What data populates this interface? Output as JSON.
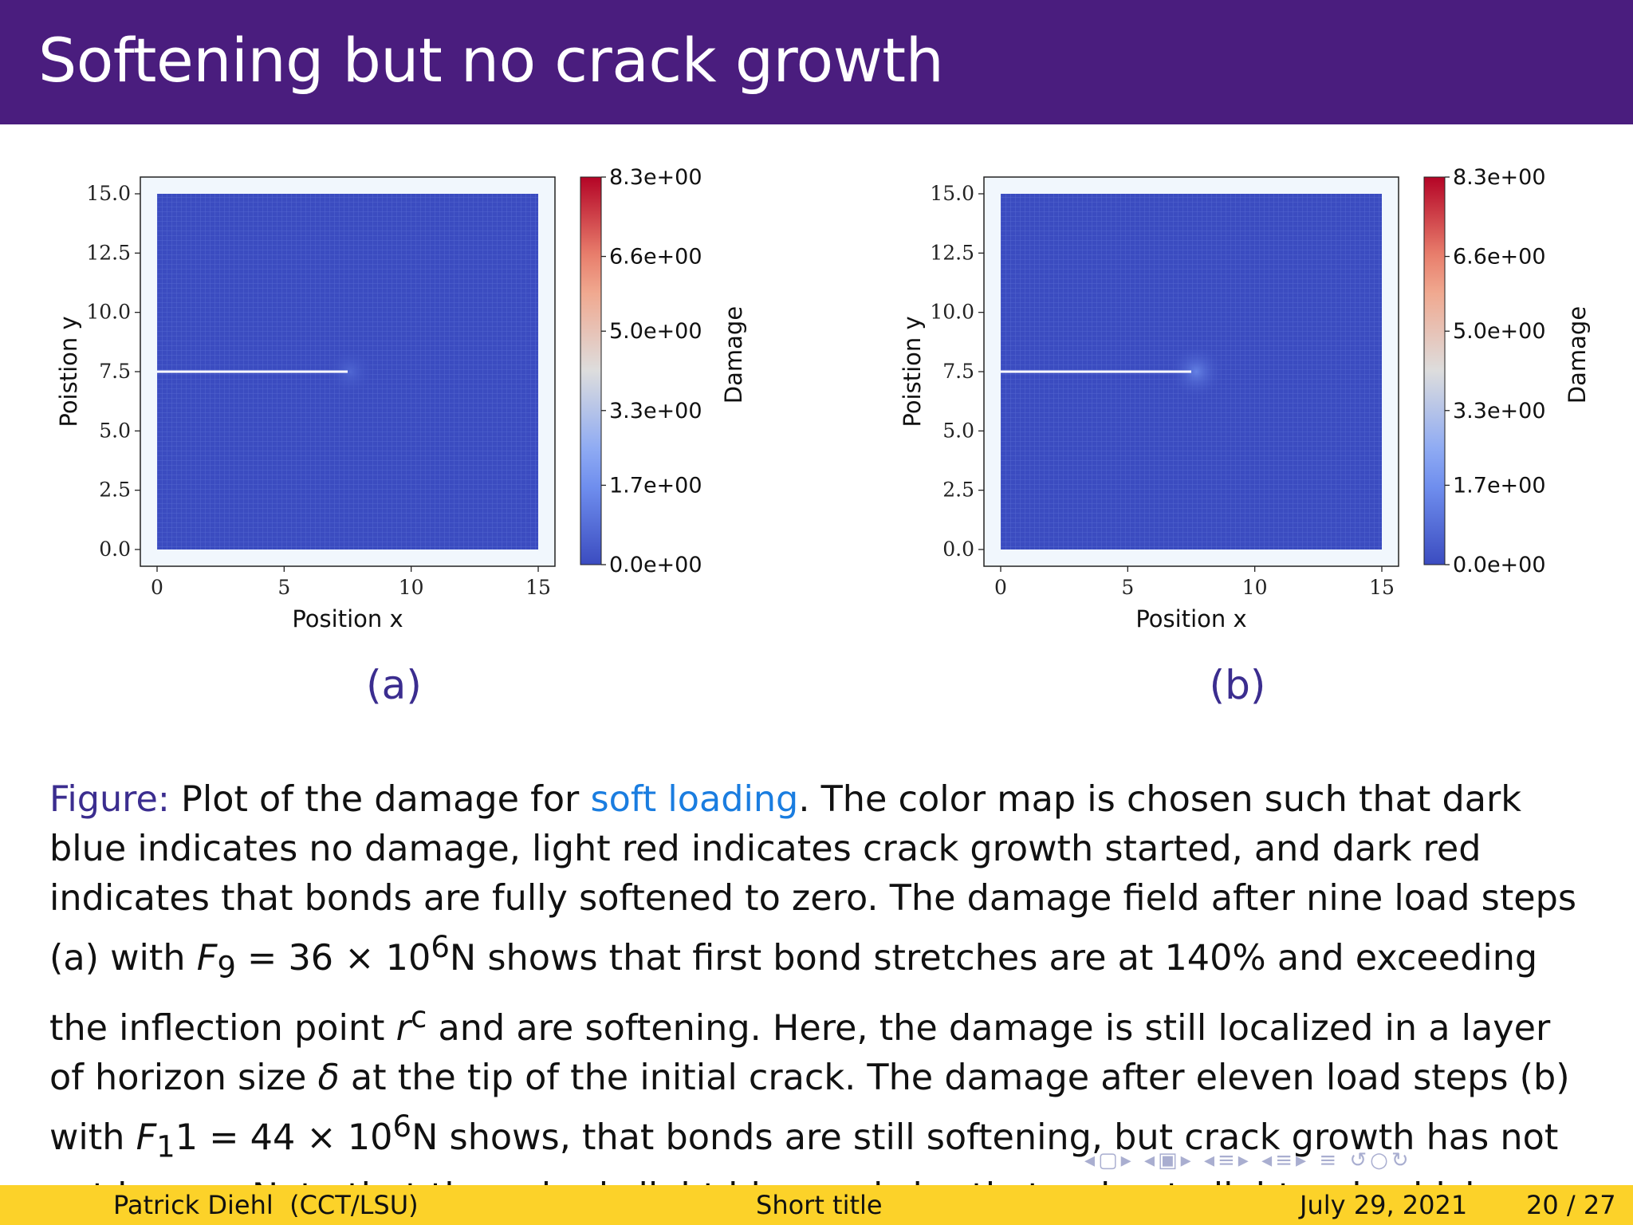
{
  "slide": {
    "title": "Softening but no crack growth"
  },
  "figures": [
    {
      "id": "a",
      "sublabel": "(a)",
      "xlabel": "Position x",
      "ylabel": "Poistion y",
      "colorbar_label": "Damage"
    },
    {
      "id": "b",
      "sublabel": "(b)",
      "xlabel": "Position x",
      "ylabel": "Poistion y",
      "colorbar_label": "Damage"
    }
  ],
  "chart_data": [
    {
      "type": "heatmap",
      "xlabel": "Position x",
      "ylabel": "Poistion y",
      "xlim": [
        0,
        15
      ],
      "ylim": [
        0,
        15
      ],
      "xticks": [
        0,
        5,
        10,
        15
      ],
      "xtick_labels": [
        "0",
        "5",
        "10",
        "15"
      ],
      "yticks": [
        0,
        2.5,
        5,
        7.5,
        10,
        12.5,
        15
      ],
      "ytick_labels": [
        "0.0",
        "2.5",
        "5.0",
        "7.5",
        "10.0",
        "12.5",
        "15.0"
      ],
      "colorbar": {
        "label": "Damage",
        "colormap": "coolwarm",
        "min": 0.0,
        "max": 8.3,
        "ticks": [
          0.0,
          1.7,
          3.3,
          5.0,
          6.6,
          8.3
        ],
        "tick_labels": [
          "0.0e+00",
          "1.7e+00",
          "3.3e+00",
          "5.0e+00",
          "6.6e+00",
          "8.3e+00"
        ]
      },
      "crack": {
        "x_start": 0,
        "x_end": 7.5,
        "y": 7.5
      },
      "hotspot": {
        "x": 7.6,
        "y": 7.5,
        "radius": 0.6,
        "damage": 0.7
      },
      "background_damage": 0.0
    },
    {
      "type": "heatmap",
      "xlabel": "Position x",
      "ylabel": "Poistion y",
      "xlim": [
        0,
        15
      ],
      "ylim": [
        0,
        15
      ],
      "xticks": [
        0,
        5,
        10,
        15
      ],
      "xtick_labels": [
        "0",
        "5",
        "10",
        "15"
      ],
      "yticks": [
        0,
        2.5,
        5,
        7.5,
        10,
        12.5,
        15
      ],
      "ytick_labels": [
        "0.0",
        "2.5",
        "5.0",
        "7.5",
        "10.0",
        "12.5",
        "15.0"
      ],
      "colorbar": {
        "label": "Damage",
        "colormap": "coolwarm",
        "min": 0.0,
        "max": 8.3,
        "ticks": [
          0.0,
          1.7,
          3.3,
          5.0,
          6.6,
          8.3
        ],
        "tick_labels": [
          "0.0e+00",
          "1.7e+00",
          "3.3e+00",
          "5.0e+00",
          "6.6e+00",
          "8.3e+00"
        ]
      },
      "crack": {
        "x_start": 0,
        "x_end": 7.5,
        "y": 7.5
      },
      "hotspot": {
        "x": 7.7,
        "y": 7.5,
        "radius": 0.7,
        "damage": 1.4
      },
      "background_damage": 0.0
    }
  ],
  "caption": {
    "label": "Figure:",
    "t1": " Plot of the damage for ",
    "link": "soft loading",
    "t2": ". The color map is chosen such that dark blue indicates no damage, light red indicates crack growth started, and dark red indicates that bonds are fully softened to zero. The damage field after nine load steps (a) with ",
    "f9": "F",
    "f9_sub": "9",
    "eq1": " = 36 × 10",
    "exp1": "6",
    "t3": "N shows that first bond stretches are at 140% and exceeding the inflection point ",
    "rc": "r",
    "rc_sup": "c",
    "t4": " and are softening. Here, the damage is still localized in a layer of horizon size ",
    "delta": "δ",
    "t5": " at the tip of the initial crack. The damage after eleven load steps (b) with ",
    "f11": "F",
    "f11_sub": "1",
    "eq2": "1 = 44 × 10",
    "exp2": "6",
    "t6": "N shows, that bonds are still softening, but crack growth has not yet begun. Note that the color is light blue and shortly turning to light red, which indicates no damage."
  },
  "footer": {
    "author": "Patrick Diehl  (CCT/LSU)",
    "short_title": "Short title",
    "date": "July 29, 2021",
    "page": "20 / 27"
  },
  "colors": {
    "header_bg": "#4a1d7e",
    "footer_bg": "#fcd229",
    "figure_label": "#3b2d8f",
    "link": "#1a7de0",
    "damage_zero": "#3b4cc0"
  }
}
